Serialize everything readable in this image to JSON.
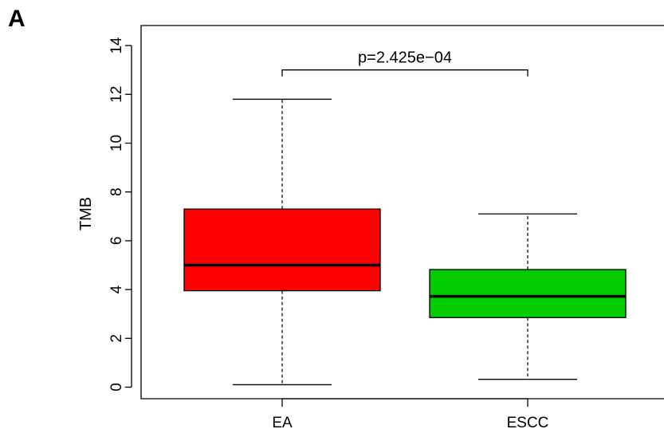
{
  "panel_label": "A",
  "chart_data": {
    "type": "boxplot",
    "ylabel": "TMB",
    "ylim": [
      0,
      14
    ],
    "yticks": [
      "0",
      "2",
      "4",
      "6",
      "8",
      "10",
      "12",
      "14"
    ],
    "grid": false,
    "categories": [
      "EA",
      "ESCC"
    ],
    "boxes": [
      {
        "category": "EA",
        "color": "#ff0000",
        "whisker_low": 0.1,
        "q1": 3.95,
        "median": 5.0,
        "q3": 7.3,
        "whisker_high": 11.8
      },
      {
        "category": "ESCC",
        "color": "#00cc00",
        "whisker_low": 0.32,
        "q1": 2.85,
        "median": 3.72,
        "q3": 4.82,
        "whisker_high": 7.1
      }
    ],
    "annotation": {
      "text": "p=2.425e−04",
      "y": 13.0,
      "from": "EA",
      "to": "ESCC"
    }
  }
}
